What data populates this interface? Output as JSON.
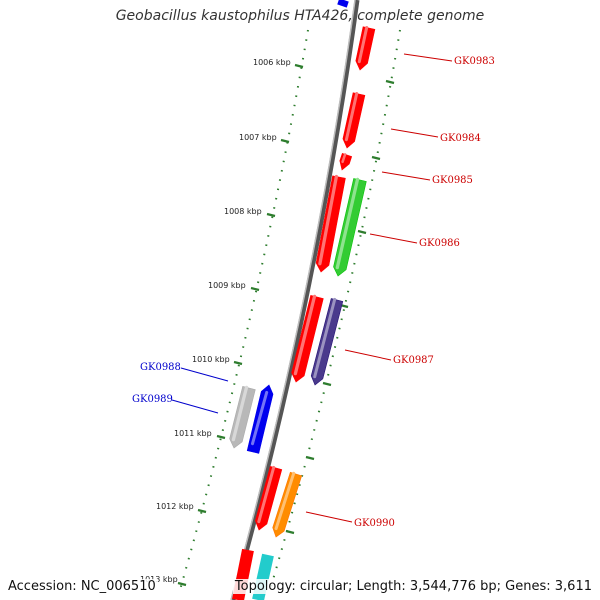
{
  "title": "Geobacillus kaustophilus HTA426, complete genome",
  "footer": {
    "accession": "Accession: NC_006510",
    "topology": "Topology: circular; Length: 3,544,776 bp; Genes: 3,611"
  },
  "colors": {
    "axis": "#8a8a8a",
    "tick": "#2e7d2e",
    "red": "#ff0000",
    "green": "#33cc33",
    "purple": "#4a3a8c",
    "gray": "#b8b8b8",
    "blue": "#0000ee",
    "orange": "#ff8c00",
    "cyan": "#22cccc",
    "label_red": "#cc0000",
    "label_blue": "#0000cc"
  },
  "scale_labels": [
    "1006 kbp",
    "1007 kbp",
    "1008 kbp",
    "1009 kbp",
    "1010 kbp",
    "1011 kbp",
    "1012 kbp",
    "1013 kbp"
  ],
  "genes": [
    {
      "label": "GK0983",
      "color": "red",
      "strand": "+"
    },
    {
      "label": "GK0984",
      "color": "red",
      "strand": "+"
    },
    {
      "label": "GK0985",
      "color": "red",
      "strand": "+"
    },
    {
      "label": "GK0986",
      "color": "red",
      "strand": "+"
    },
    {
      "label": "GK0986",
      "color": "green",
      "strand": "+"
    },
    {
      "label": "GK0987",
      "color": "red",
      "strand": "+"
    },
    {
      "label": "GK0987",
      "color": "purple",
      "strand": "+"
    },
    {
      "label": "GK0988",
      "color": "gray",
      "strand": "-"
    },
    {
      "label": "GK0989",
      "color": "blue",
      "strand": "-"
    },
    {
      "label": "GK0990",
      "color": "red",
      "strand": "+"
    },
    {
      "label": "GK0990",
      "color": "orange",
      "strand": "+"
    }
  ],
  "gene_labels": [
    {
      "text": "GK0983",
      "color": "label_red"
    },
    {
      "text": "GK0984",
      "color": "label_red"
    },
    {
      "text": "GK0985",
      "color": "label_red"
    },
    {
      "text": "GK0986",
      "color": "label_red"
    },
    {
      "text": "GK0987",
      "color": "label_red"
    },
    {
      "text": "GK0988",
      "color": "label_blue"
    },
    {
      "text": "GK0989",
      "color": "label_blue"
    },
    {
      "text": "GK0990",
      "color": "label_red"
    }
  ]
}
